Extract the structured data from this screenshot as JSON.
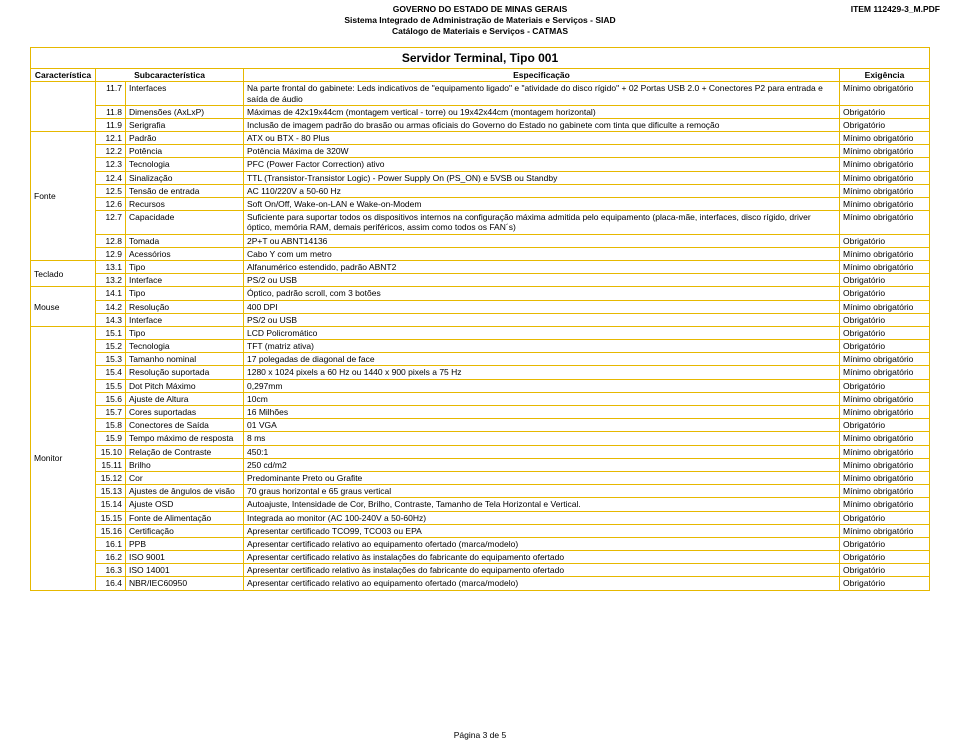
{
  "header": {
    "line1": "GOVERNO DO ESTADO DE MINAS GERAIS",
    "line2": "Sistema Integrado de Administração de Materiais e Serviços - SIAD",
    "line3": "Catálogo de Materiais e Serviços - CATMAS",
    "item": "ITEM 112429-3_M.PDF"
  },
  "title": "Servidor Terminal, Tipo 001",
  "columns": {
    "c1": "Característica",
    "c2": "Subcaracterística",
    "c3": "Especificação",
    "c4": "Exigência"
  },
  "rows": [
    {
      "g": "",
      "n": "11.7",
      "s": "Interfaces",
      "e": "Na parte frontal do gabinete: Leds indicativos de \"equipamento ligado\" e \"atividade do disco rígido\" + 02 Portas USB 2.0 + Conectores P2 para entrada e saída de áudio",
      "x": "Mínimo obrigatório"
    },
    {
      "g": "",
      "n": "11.8",
      "s": "Dimensões (AxLxP)",
      "e": "Máximas de 42x19x44cm (montagem vertical - torre) ou 19x42x44cm (montagem horizontal)",
      "x": "Obrigatório"
    },
    {
      "g": "",
      "n": "11.9",
      "s": "Serigrafia",
      "e": "Inclusão de imagem padrão do brasão ou armas oficiais do Governo do Estado no gabinete com tinta que dificulte a remoção",
      "x": "Obrigatório"
    },
    {
      "g": "Fonte",
      "n": "12.1",
      "s": "Padrão",
      "e": "ATX ou BTX - 80 Plus",
      "x": "Mínimo obrigatório"
    },
    {
      "g": "",
      "n": "12.2",
      "s": "Potência",
      "e": "Potência Máxima de 320W",
      "x": "Mínimo obrigatório"
    },
    {
      "g": "",
      "n": "12.3",
      "s": "Tecnologia",
      "e": "PFC (Power Factor Correction) ativo",
      "x": "Mínimo obrigatório"
    },
    {
      "g": "",
      "n": "12.4",
      "s": "Sinalização",
      "e": "TTL (Transistor-Transistor Logic) - Power Supply On (PS_ON) e 5VSB ou Standby",
      "x": "Mínimo obrigatório"
    },
    {
      "g": "",
      "n": "12.5",
      "s": "Tensão de entrada",
      "e": "AC 110/220V a 50-60 Hz",
      "x": "Mínimo obrigatório"
    },
    {
      "g": "",
      "n": "12.6",
      "s": "Recursos",
      "e": "Soft On/Off, Wake-on-LAN e Wake-on-Modem",
      "x": "Mínimo obrigatório"
    },
    {
      "g": "",
      "n": "12.7",
      "s": "Capacidade",
      "e": "Suficiente para suportar todos os dispositivos internos na configuração máxima admitida pelo equipamento (placa-mãe, interfaces, disco rígido, driver óptico, memória RAM, demais periféricos, assim como todos os FAN´s)",
      "x": "Mínimo obrigatório"
    },
    {
      "g": "",
      "n": "12.8",
      "s": "Tomada",
      "e": "2P+T ou ABNT14136",
      "x": "Obrigatório"
    },
    {
      "g": "",
      "n": "12.9",
      "s": "Acessórios",
      "e": "Cabo Y com um metro",
      "x": "Mínimo obrigatório"
    },
    {
      "g": "Teclado",
      "n": "13.1",
      "s": "Tipo",
      "e": "Alfanumérico estendido, padrão ABNT2",
      "x": "Mínimo obrigatório"
    },
    {
      "g": "",
      "n": "13.2",
      "s": "Interface",
      "e": "PS/2 ou USB",
      "x": "Obrigatório"
    },
    {
      "g": "Mouse",
      "n": "14.1",
      "s": "Tipo",
      "e": "Óptico, padrão scroll, com 3 botões",
      "x": "Obrigatório"
    },
    {
      "g": "",
      "n": "14.2",
      "s": "Resolução",
      "e": "400 DPI",
      "x": "Mínimo obrigatório"
    },
    {
      "g": "",
      "n": "14.3",
      "s": "Interface",
      "e": "PS/2 ou USB",
      "x": "Obrigatório"
    },
    {
      "g": "Monitor",
      "n": "15.1",
      "s": "Tipo",
      "e": "LCD Policromático",
      "x": "Obrigatório"
    },
    {
      "g": "",
      "n": "15.2",
      "s": "Tecnologia",
      "e": "TFT (matriz ativa)",
      "x": "Obrigatório"
    },
    {
      "g": "",
      "n": "15.3",
      "s": "Tamanho nominal",
      "e": "17 polegadas de diagonal de face",
      "x": "Mínimo obrigatório"
    },
    {
      "g": "",
      "n": "15.4",
      "s": "Resolução suportada",
      "e": "1280 x 1024 pixels a 60 Hz ou 1440 x 900 pixels a 75 Hz",
      "x": "Mínimo obrigatório"
    },
    {
      "g": "",
      "n": "15.5",
      "s": "Dot Pitch Máximo",
      "e": "0,297mm",
      "x": "Obrigatório"
    },
    {
      "g": "",
      "n": "15.6",
      "s": "Ajuste de Altura",
      "e": "10cm",
      "x": "Mínimo obrigatório"
    },
    {
      "g": "",
      "n": "15.7",
      "s": "Cores suportadas",
      "e": "16 Milhões",
      "x": "Mínimo obrigatório"
    },
    {
      "g": "",
      "n": "15.8",
      "s": "Conectores de Saída",
      "e": "01 VGA",
      "x": "Obrigatório"
    },
    {
      "g": "",
      "n": "15.9",
      "s": "Tempo máximo de resposta",
      "e": "8 ms",
      "x": "Mínimo obrigatório"
    },
    {
      "g": "",
      "n": "15.10",
      "s": "Relação de Contraste",
      "e": "450:1",
      "x": "Mínimo obrigatório"
    },
    {
      "g": "",
      "n": "15.11",
      "s": "Brilho",
      "e": "250 cd/m2",
      "x": "Mínimo obrigatório"
    },
    {
      "g": "",
      "n": "15.12",
      "s": "Cor",
      "e": "Predominante Preto ou Grafite",
      "x": "Mínimo obrigatório"
    },
    {
      "g": "",
      "n": "15.13",
      "s": "Ajustes de ângulos de visão",
      "e": "70 graus horizontal e 65 graus vertical",
      "x": "Mínimo obrigatório"
    },
    {
      "g": "",
      "n": "15.14",
      "s": "Ajuste OSD",
      "e": "Autoajuste, Intensidade de Cor, Brilho, Contraste, Tamanho de Tela Horizontal e Vertical.",
      "x": "Mínimo obrigatório"
    },
    {
      "g": "",
      "n": "15.15",
      "s": "Fonte de Alimentação",
      "e": "Integrada ao monitor (AC 100-240V a 50-60Hz)",
      "x": "Obrigatório"
    },
    {
      "g": "",
      "n": "15.16",
      "s": "Certificação",
      "e": "Apresentar certificado TCO99, TCO03 ou EPA",
      "x": "Mínimo obrigatório"
    },
    {
      "g": "",
      "n": "16.1",
      "s": "PPB",
      "e": "Apresentar certificado relativo ao equipamento ofertado (marca/modelo)",
      "x": "Obrigatório"
    },
    {
      "g": "",
      "n": "16.2",
      "s": "ISO 9001",
      "e": "Apresentar certificado relativo às instalações do fabricante do equipamento ofertado",
      "x": "Obrigatório"
    },
    {
      "g": "",
      "n": "16.3",
      "s": "ISO 14001",
      "e": "Apresentar certificado relativo às instalações do fabricante do equipamento ofertado",
      "x": "Obrigatório"
    },
    {
      "g": "",
      "n": "16.4",
      "s": "NBR/IEC60950",
      "e": "Apresentar certificado relativo ao equipamento ofertado (marca/modelo)",
      "x": "Obrigatório"
    }
  ],
  "groups": [
    {
      "label": "",
      "start": 0,
      "span": 3
    },
    {
      "label": "Fonte",
      "start": 3,
      "span": 9
    },
    {
      "label": "Teclado",
      "start": 12,
      "span": 2
    },
    {
      "label": "Mouse",
      "start": 14,
      "span": 3
    },
    {
      "label": "Monitor",
      "start": 17,
      "span": 20
    }
  ],
  "footer": "Página 3 de 5"
}
